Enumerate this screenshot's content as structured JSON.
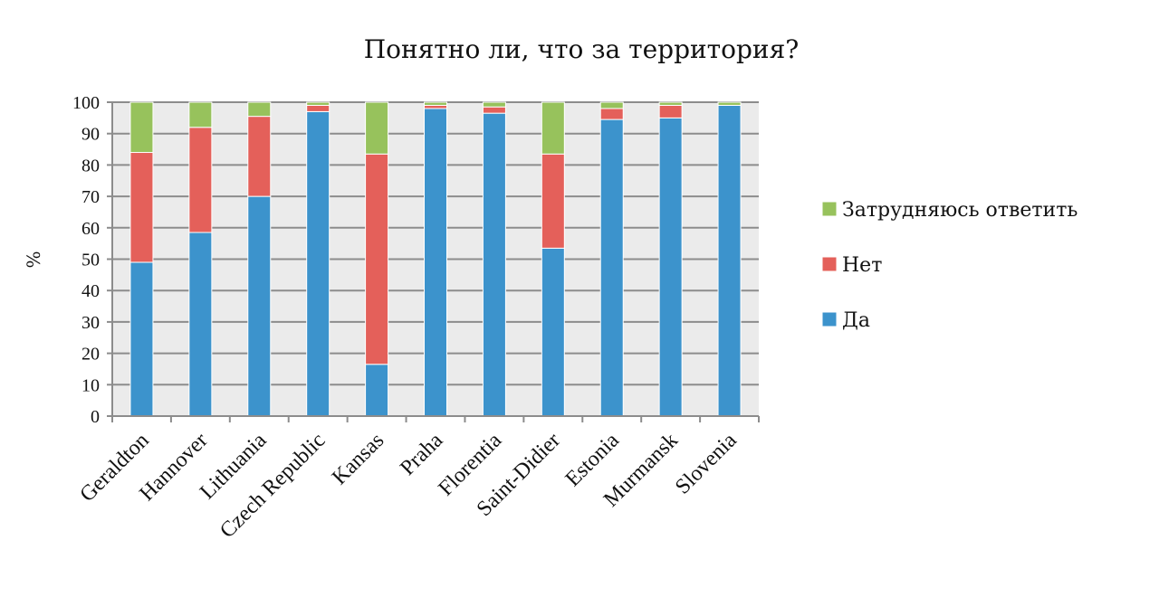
{
  "chart_data": {
    "type": "bar",
    "stacked": true,
    "title": "Понятно ли, что за территория?",
    "xlabel": "",
    "ylabel": "%",
    "ylim": [
      0,
      100
    ],
    "yticks": [
      0,
      10,
      20,
      30,
      40,
      50,
      60,
      70,
      80,
      90,
      100
    ],
    "grid": true,
    "legend_position": "right",
    "categories": [
      "Geraldton",
      "Hannover",
      "Lithuania",
      "Czech Republic",
      "Kansas",
      "Praha",
      "Florentia",
      "Saint-Didier",
      "Estonia",
      "Murmansk",
      "Slovenia"
    ],
    "series": [
      {
        "name": "Да",
        "color": "#3c93cc",
        "values": [
          49,
          58.5,
          70,
          97,
          16.5,
          98,
          96.5,
          53.5,
          94.5,
          95,
          99
        ]
      },
      {
        "name": "Нет",
        "color": "#e4605a",
        "values": [
          35,
          33.5,
          25.5,
          2,
          67,
          1,
          2,
          30,
          3.5,
          4,
          0
        ]
      },
      {
        "name": "Затрудняюсь ответить",
        "color": "#97c25c",
        "values": [
          16,
          8,
          4.5,
          1,
          16.5,
          1,
          1.5,
          16.5,
          2,
          1,
          1
        ]
      }
    ],
    "plot_background": "#ebebeb",
    "grid_color": "#8c8c8c"
  }
}
